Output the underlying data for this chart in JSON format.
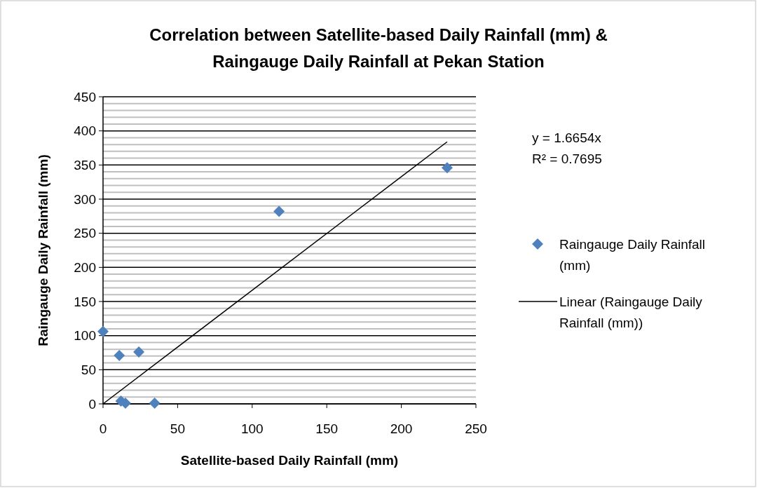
{
  "chart_data": {
    "type": "scatter",
    "title": "Correlation between Satellite-based Daily Rainfall (mm) &\nRaingauge Daily Rainfall at Pekan Station",
    "xlabel": "Satellite-based Daily Rainfall (mm)",
    "ylabel": "Raingauge Daily Rainfall (mm)",
    "xlim": [
      0,
      250
    ],
    "xticks": [
      0,
      50,
      100,
      150,
      200,
      250
    ],
    "ylim": [
      0,
      450
    ],
    "yticks": [
      0,
      50,
      100,
      150,
      200,
      250,
      300,
      350,
      400,
      450
    ],
    "grid": "y",
    "legend": "right",
    "annotations": [
      "y = 1.6654x",
      "R² = 0.7695"
    ],
    "series": [
      {
        "name": "Raingauge Daily Rainfall (mm)",
        "marker": "diamond",
        "color": "#4f81bd",
        "x": [
          0,
          10.9,
          24,
          12,
          15,
          34.6,
          118,
          230.7
        ],
        "values": [
          106,
          71,
          76,
          4,
          1,
          1,
          282,
          346
        ]
      },
      {
        "name": "Linear (Raingauge Daily Rainfall (mm))",
        "type": "line",
        "color": "#000000",
        "x": [
          0,
          230.7
        ],
        "values": [
          0,
          384
        ],
        "line_style": "solid"
      }
    ]
  }
}
